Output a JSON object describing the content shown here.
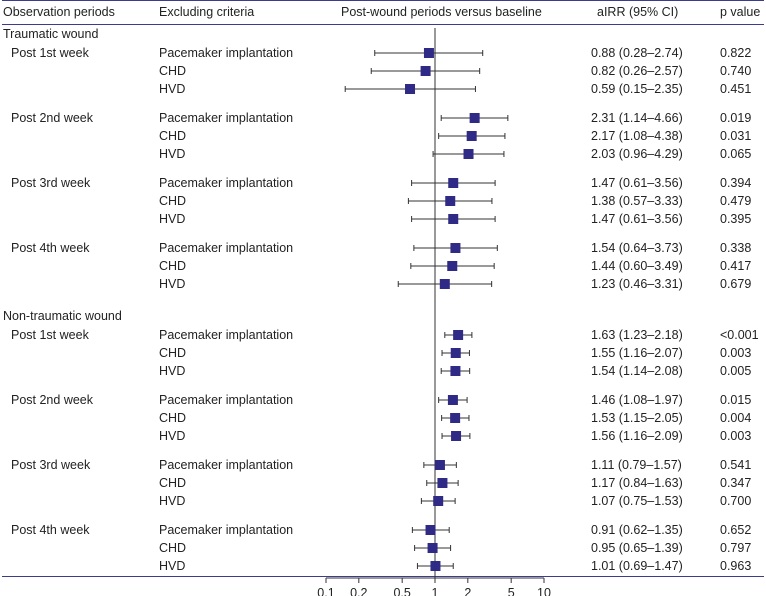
{
  "chart_data": {
    "type": "forest",
    "headers": {
      "col1": "Observation periods",
      "col2": "Excluding criteria",
      "col3": "Post-wound periods versus baseline",
      "col4": "aIRR (95% CI)",
      "col5": "p value"
    },
    "x_scale": "log",
    "xlim": [
      0.1,
      10
    ],
    "reference_line": 1,
    "x_ticks": [
      "0.1",
      "0.2",
      "0.5",
      "1",
      "2",
      "5",
      "10"
    ],
    "groups": [
      {
        "label": "Traumatic wound",
        "periods": [
          {
            "label": "Post 1st week",
            "rows": [
              {
                "criteria": "Pacemaker implantation",
                "est": 0.88,
                "lo": 0.28,
                "hi": 2.74,
                "ci_text": "0.88 (0.28–2.74)",
                "p": "0.822"
              },
              {
                "criteria": "CHD",
                "est": 0.82,
                "lo": 0.26,
                "hi": 2.57,
                "ci_text": "0.82 (0.26–2.57)",
                "p": "0.740"
              },
              {
                "criteria": "HVD",
                "est": 0.59,
                "lo": 0.15,
                "hi": 2.35,
                "ci_text": "0.59 (0.15–2.35)",
                "p": "0.451"
              }
            ]
          },
          {
            "label": "Post 2nd week",
            "rows": [
              {
                "criteria": "Pacemaker implantation",
                "est": 2.31,
                "lo": 1.14,
                "hi": 4.66,
                "ci_text": "2.31 (1.14–4.66)",
                "p": "0.019"
              },
              {
                "criteria": "CHD",
                "est": 2.17,
                "lo": 1.08,
                "hi": 4.38,
                "ci_text": "2.17 (1.08–4.38)",
                "p": "0.031"
              },
              {
                "criteria": "HVD",
                "est": 2.03,
                "lo": 0.96,
                "hi": 4.29,
                "ci_text": "2.03 (0.96–4.29)",
                "p": "0.065"
              }
            ]
          },
          {
            "label": "Post 3rd week",
            "rows": [
              {
                "criteria": "Pacemaker implantation",
                "est": 1.47,
                "lo": 0.61,
                "hi": 3.56,
                "ci_text": "1.47 (0.61–3.56)",
                "p": "0.394"
              },
              {
                "criteria": "CHD",
                "est": 1.38,
                "lo": 0.57,
                "hi": 3.33,
                "ci_text": "1.38 (0.57–3.33)",
                "p": "0.479"
              },
              {
                "criteria": "HVD",
                "est": 1.47,
                "lo": 0.61,
                "hi": 3.56,
                "ci_text": "1.47 (0.61–3.56)",
                "p": "0.395"
              }
            ]
          },
          {
            "label": "Post 4th week",
            "rows": [
              {
                "criteria": "Pacemaker implantation",
                "est": 1.54,
                "lo": 0.64,
                "hi": 3.73,
                "ci_text": "1.54 (0.64–3.73)",
                "p": "0.338"
              },
              {
                "criteria": "CHD",
                "est": 1.44,
                "lo": 0.6,
                "hi": 3.49,
                "ci_text": "1.44 (0.60–3.49)",
                "p": "0.417"
              },
              {
                "criteria": "HVD",
                "est": 1.23,
                "lo": 0.46,
                "hi": 3.31,
                "ci_text": "1.23 (0.46–3.31)",
                "p": "0.679"
              }
            ]
          }
        ]
      },
      {
        "label": "Non-traumatic wound",
        "periods": [
          {
            "label": "Post 1st week",
            "rows": [
              {
                "criteria": "Pacemaker implantation",
                "est": 1.63,
                "lo": 1.23,
                "hi": 2.18,
                "ci_text": "1.63 (1.23–2.18)",
                "p": "<0.001"
              },
              {
                "criteria": "CHD",
                "est": 1.55,
                "lo": 1.16,
                "hi": 2.07,
                "ci_text": "1.55 (1.16–2.07)",
                "p": "0.003"
              },
              {
                "criteria": "HVD",
                "est": 1.54,
                "lo": 1.14,
                "hi": 2.08,
                "ci_text": "1.54 (1.14–2.08)",
                "p": "0.005"
              }
            ]
          },
          {
            "label": "Post 2nd week",
            "rows": [
              {
                "criteria": "Pacemaker implantation",
                "est": 1.46,
                "lo": 1.08,
                "hi": 1.97,
                "ci_text": "1.46 (1.08–1.97)",
                "p": "0.015"
              },
              {
                "criteria": "CHD",
                "est": 1.53,
                "lo": 1.15,
                "hi": 2.05,
                "ci_text": "1.53 (1.15–2.05)",
                "p": "0.004"
              },
              {
                "criteria": "HVD",
                "est": 1.56,
                "lo": 1.16,
                "hi": 2.09,
                "ci_text": "1.56 (1.16–2.09)",
                "p": "0.003"
              }
            ]
          },
          {
            "label": "Post 3rd week",
            "rows": [
              {
                "criteria": "Pacemaker implantation",
                "est": 1.11,
                "lo": 0.79,
                "hi": 1.57,
                "ci_text": "1.11 (0.79–1.57)",
                "p": "0.541"
              },
              {
                "criteria": "CHD",
                "est": 1.17,
                "lo": 0.84,
                "hi": 1.63,
                "ci_text": "1.17 (0.84–1.63)",
                "p": "0.347"
              },
              {
                "criteria": "HVD",
                "est": 1.07,
                "lo": 0.75,
                "hi": 1.53,
                "ci_text": "1.07 (0.75–1.53)",
                "p": "0.700"
              }
            ]
          },
          {
            "label": "Post 4th week",
            "rows": [
              {
                "criteria": "Pacemaker implantation",
                "est": 0.91,
                "lo": 0.62,
                "hi": 1.35,
                "ci_text": "0.91 (0.62–1.35)",
                "p": "0.652"
              },
              {
                "criteria": "CHD",
                "est": 0.95,
                "lo": 0.65,
                "hi": 1.39,
                "ci_text": "0.95 (0.65–1.39)",
                "p": "0.797"
              },
              {
                "criteria": "HVD",
                "est": 1.01,
                "lo": 0.69,
                "hi": 1.47,
                "ci_text": "1.01 (0.69–1.47)",
                "p": "0.963"
              }
            ]
          }
        ]
      }
    ]
  },
  "colors": {
    "marker": "#2e2a86",
    "whisker": "#333333",
    "rule": "#3c3c8c",
    "axis": "#333333"
  }
}
